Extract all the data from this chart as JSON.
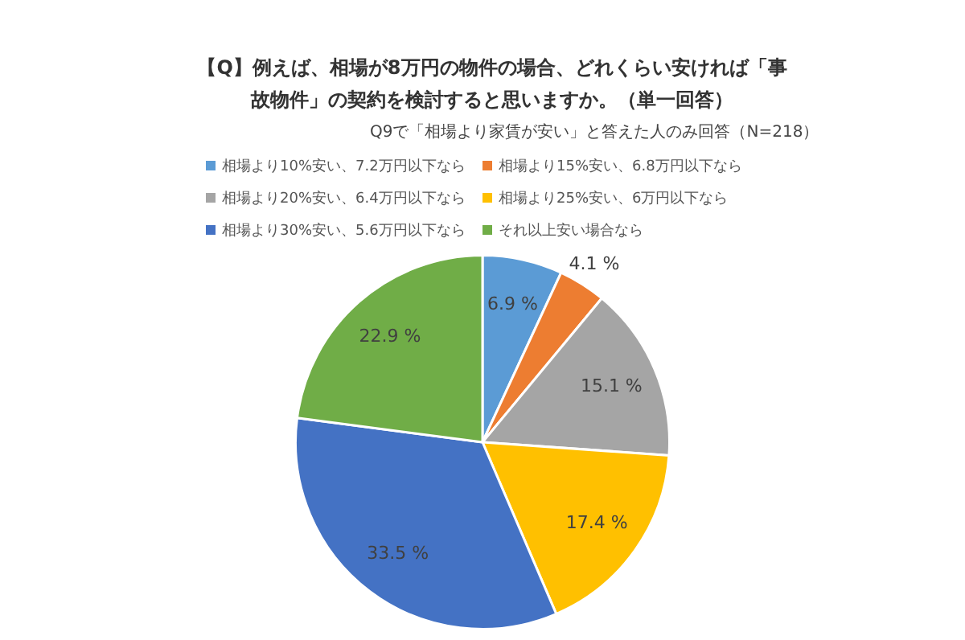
{
  "chart_data": {
    "type": "pie",
    "title": "【Q】例えば、相場が8万円の物件の場合、どれくらい安ければ「事故物件」の契約を検討すると思いますか。（単一回答）",
    "subtitle": "Q9で「相場より家賃が安い」と答えた人のみ回答（N=218）",
    "categories": [
      "相場より10%安い、7.2万円以下なら",
      "相場より15%安い、6.8万円以下なら",
      "相場より20%安い、6.4万円以下なら",
      "相場より25%安い、6万円以下なら",
      "相場より30%安い、5.6万円以下なら",
      "それ以上安い場合なら"
    ],
    "values": [
      6.9,
      4.1,
      15.1,
      17.4,
      33.5,
      22.9
    ],
    "colors": [
      "#5b9bd5",
      "#ed7d31",
      "#a5a5a5",
      "#ffc000",
      "#4472c4",
      "#70ad47"
    ],
    "value_labels": [
      "6.9 %",
      "4.1 %",
      "15.1 %",
      "17.4 %",
      "33.5 %",
      "22.9 %"
    ],
    "legend": "top"
  }
}
